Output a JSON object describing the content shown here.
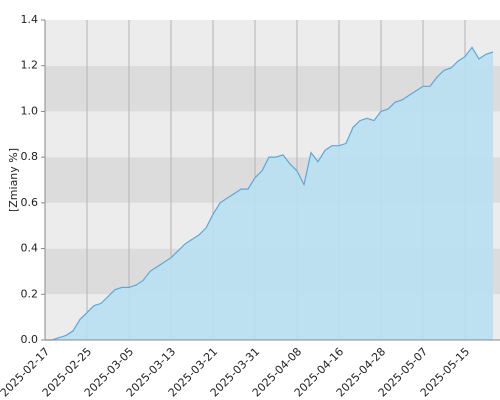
{
  "chart_data": {
    "type": "area",
    "y_label": "[Zmiany %]",
    "categories": [
      "2025-02-17",
      null,
      null,
      null,
      null,
      null,
      "2025-02-25",
      null,
      null,
      null,
      null,
      null,
      "2025-03-05",
      null,
      null,
      null,
      null,
      null,
      "2025-03-13",
      null,
      null,
      null,
      null,
      null,
      "2025-03-21",
      null,
      null,
      null,
      null,
      null,
      "2025-03-31",
      null,
      null,
      null,
      null,
      null,
      "2025-04-08",
      null,
      null,
      null,
      null,
      null,
      "2025-04-16",
      null,
      null,
      null,
      null,
      null,
      "2025-04-28",
      null,
      null,
      null,
      null,
      null,
      "2025-05-07",
      null,
      null,
      null,
      null,
      null,
      "2025-05-15",
      null,
      null,
      null,
      null
    ],
    "values": [
      0,
      0,
      0.01,
      0.02,
      0.04,
      0.09,
      0.12,
      0.15,
      0.16,
      0.19,
      0.22,
      0.23,
      0.23,
      0.24,
      0.26,
      0.3,
      0.32,
      0.34,
      0.36,
      0.39,
      0.42,
      0.44,
      0.46,
      0.49,
      0.55,
      0.6,
      0.62,
      0.64,
      0.66,
      0.66,
      0.71,
      0.74,
      0.8,
      0.8,
      0.81,
      0.77,
      0.74,
      0.68,
      0.82,
      0.78,
      0.83,
      0.85,
      0.85,
      0.86,
      0.93,
      0.96,
      0.97,
      0.96,
      1.0,
      1.01,
      1.04,
      1.05,
      1.07,
      1.09,
      1.11,
      1.11,
      1.15,
      1.18,
      1.19,
      1.22,
      1.24,
      1.28,
      1.23,
      1.25,
      1.26
    ],
    "color": "#5aa8dc",
    "fill": "#b8dff0",
    "ylim": [
      0,
      1.4
    ],
    "yticks": [
      {
        "value": 0,
        "label": "0.0"
      },
      0.2,
      0.4,
      0.6,
      0.8,
      {
        "value": 1,
        "label": "1.0"
      },
      1.2,
      1.4
    ],
    "grid": true
  }
}
